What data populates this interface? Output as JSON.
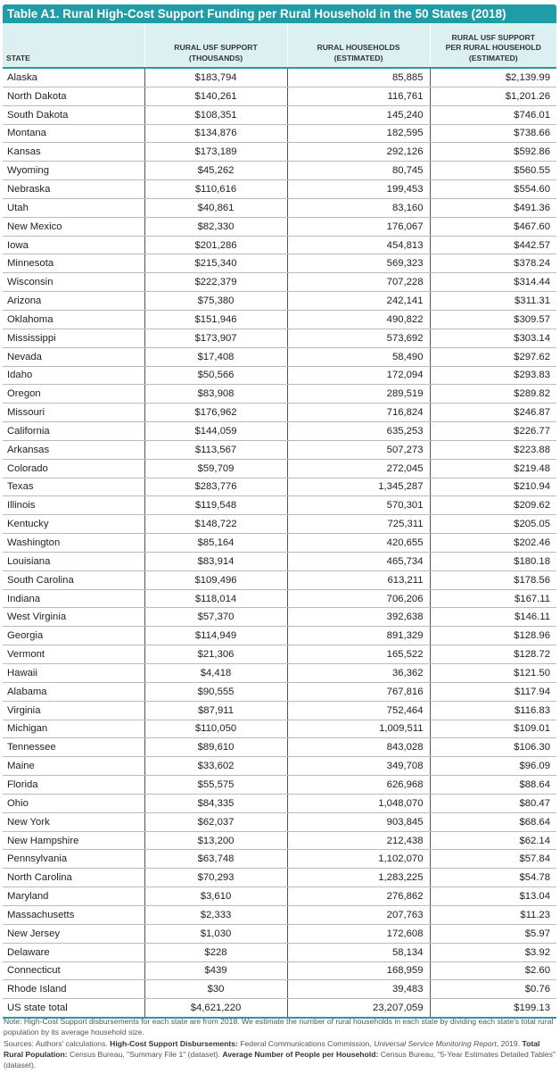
{
  "title": "Table A1. Rural High-Cost Support Funding per Rural Household in the 50 States (2018)",
  "columns": {
    "state": "STATE",
    "support_1": "RURAL USF SUPPORT",
    "support_2": "(THOUSANDS)",
    "households_1": "RURAL HOUSEHOLDS",
    "households_2": "(ESTIMATED)",
    "per_1": "RURAL USF SUPPORT",
    "per_2": "PER RURAL HOUSEHOLD",
    "per_3": "(ESTIMATED)"
  },
  "rows": [
    [
      "Alaska",
      "$183,794",
      "85,885",
      "$2,139.99"
    ],
    [
      "North Dakota",
      "$140,261",
      "116,761",
      "$1,201.26"
    ],
    [
      "South Dakota",
      "$108,351",
      "145,240",
      "$746.01"
    ],
    [
      "Montana",
      "$134,876",
      "182,595",
      "$738.66"
    ],
    [
      "Kansas",
      "$173,189",
      "292,126",
      "$592.86"
    ],
    [
      "Wyoming",
      "$45,262",
      "80,745",
      "$560.55"
    ],
    [
      "Nebraska",
      "$110,616",
      "199,453",
      "$554.60"
    ],
    [
      "Utah",
      "$40,861",
      "83,160",
      "$491.36"
    ],
    [
      "New Mexico",
      "$82,330",
      "176,067",
      "$467.60"
    ],
    [
      "Iowa",
      "$201,286",
      "454,813",
      "$442.57"
    ],
    [
      "Minnesota",
      "$215,340",
      "569,323",
      "$378.24"
    ],
    [
      "Wisconsin",
      "$222,379",
      "707,228",
      "$314.44"
    ],
    [
      "Arizona",
      "$75,380",
      "242,141",
      "$311.31"
    ],
    [
      "Oklahoma",
      "$151,946",
      "490,822",
      "$309.57"
    ],
    [
      "Mississippi",
      "$173,907",
      "573,692",
      "$303.14"
    ],
    [
      "Nevada",
      "$17,408",
      "58,490",
      "$297.62"
    ],
    [
      "Idaho",
      "$50,566",
      "172,094",
      "$293.83"
    ],
    [
      "Oregon",
      "$83,908",
      "289,519",
      "$289.82"
    ],
    [
      "Missouri",
      "$176,962",
      "716,824",
      "$246.87"
    ],
    [
      "California",
      "$144,059",
      "635,253",
      "$226.77"
    ],
    [
      "Arkansas",
      "$113,567",
      "507,273",
      "$223.88"
    ],
    [
      "Colorado",
      "$59,709",
      "272,045",
      "$219.48"
    ],
    [
      "Texas",
      "$283,776",
      "1,345,287",
      "$210.94"
    ],
    [
      "Illinois",
      "$119,548",
      "570,301",
      "$209.62"
    ],
    [
      "Kentucky",
      "$148,722",
      "725,311",
      "$205.05"
    ],
    [
      "Washington",
      "$85,164",
      "420,655",
      "$202.46"
    ],
    [
      "Louisiana",
      "$83,914",
      "465,734",
      "$180.18"
    ],
    [
      "South Carolina",
      "$109,496",
      "613,211",
      "$178.56"
    ],
    [
      "Indiana",
      "$118,014",
      "706,206",
      "$167.11"
    ],
    [
      "West Virginia",
      "$57,370",
      "392,638",
      "$146.11"
    ],
    [
      "Georgia",
      "$114,949",
      "891,329",
      "$128.96"
    ],
    [
      "Vermont",
      "$21,306",
      "165,522",
      "$128.72"
    ],
    [
      "Hawaii",
      "$4,418",
      "36,362",
      "$121.50"
    ],
    [
      "Alabama",
      "$90,555",
      "767,816",
      "$117.94"
    ],
    [
      "Virginia",
      "$87,911",
      "752,464",
      "$116.83"
    ],
    [
      "Michigan",
      "$110,050",
      "1,009,511",
      "$109.01"
    ],
    [
      "Tennessee",
      "$89,610",
      "843,028",
      "$106.30"
    ],
    [
      "Maine",
      "$33,602",
      "349,708",
      "$96.09"
    ],
    [
      "Florida",
      "$55,575",
      "626,968",
      "$88.64"
    ],
    [
      "Ohio",
      "$84,335",
      "1,048,070",
      "$80.47"
    ],
    [
      "New York",
      "$62,037",
      "903,845",
      "$68.64"
    ],
    [
      "New Hampshire",
      "$13,200",
      "212,438",
      "$62.14"
    ],
    [
      "Pennsylvania",
      "$63,748",
      "1,102,070",
      "$57.84"
    ],
    [
      "North Carolina",
      "$70,293",
      "1,283,225",
      "$54.78"
    ],
    [
      "Maryland",
      "$3,610",
      "276,862",
      "$13.04"
    ],
    [
      "Massachusetts",
      "$2,333",
      "207,763",
      "$11.23"
    ],
    [
      "New Jersey",
      "$1,030",
      "172,608",
      "$5.97"
    ],
    [
      "Delaware",
      "$228",
      "58,134",
      "$3.92"
    ],
    [
      "Connecticut",
      "$439",
      "168,959",
      "$2.60"
    ],
    [
      "Rhode Island",
      "$30",
      "39,483",
      "$0.76"
    ],
    [
      "US state total",
      "$4,621,220",
      "23,207,059",
      "$199.13"
    ]
  ],
  "note": {
    "line1": "Note: High-Cost Support disbursements for each state are from 2018. We estimate the number of rural households in each state by dividing each state's total rural population by its average household size.",
    "sources_prefix": "Sources: Authors' calculations. ",
    "hcs_label": "High-Cost Support Disbursements:",
    "hcs_text": " Federal Communications Commission, ",
    "hcs_italic": "Universal Service Monitoring Report",
    "hcs_year": ", 2019. ",
    "trp_label": "Total Rural Population:",
    "trp_text": " Census Bureau, \"Summary File 1\" (dataset). ",
    "anp_label": "Average Number of People per Household:",
    "anp_text": " Census Bureau, \"5-Year Estimates Detailed Tables\" (dataset)."
  }
}
